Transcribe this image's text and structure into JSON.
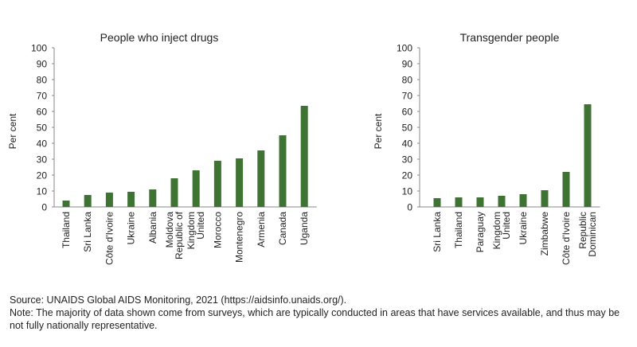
{
  "colors": {
    "bar": "#3f7334",
    "axis": "#888888",
    "text": "#222222"
  },
  "chart_data": [
    {
      "type": "bar",
      "title": "People who inject drugs",
      "xlabel": "",
      "ylabel": "Per cent",
      "ylim": [
        0,
        100
      ],
      "yticks": [
        0,
        10,
        20,
        30,
        40,
        50,
        60,
        70,
        80,
        90,
        100
      ],
      "grid": false,
      "categories": [
        "Thailand",
        "Sri Lanka",
        "Côte d'Ivoire",
        "Ukraine",
        "Albania",
        "Republic of Moldova",
        "United Kingdom",
        "Morocco",
        "Montenegro",
        "Armenia",
        "Canada",
        "Uganda"
      ],
      "category_lines": [
        [
          "Thailand"
        ],
        [
          "Sri Lanka"
        ],
        [
          "Côte d'Ivoire"
        ],
        [
          "Ukraine"
        ],
        [
          "Albania"
        ],
        [
          "Republic of",
          "Moldova"
        ],
        [
          "United",
          "Kingdom"
        ],
        [
          "Morocco"
        ],
        [
          "Montenegro"
        ],
        [
          "Armenia"
        ],
        [
          "Canada"
        ],
        [
          "Uganda"
        ]
      ],
      "values": [
        4,
        7.5,
        9,
        9.5,
        11,
        18,
        23,
        29,
        30.5,
        35.5,
        45,
        63.5
      ]
    },
    {
      "type": "bar",
      "title": "Transgender people",
      "xlabel": "",
      "ylabel": "Per cent",
      "ylim": [
        0,
        100
      ],
      "yticks": [
        0,
        10,
        20,
        30,
        40,
        50,
        60,
        70,
        80,
        90,
        100
      ],
      "grid": false,
      "categories": [
        "Sri Lanka",
        "Thailand",
        "Paraguay",
        "United Kingdom",
        "Ukraine",
        "Zimbabwe",
        "Côte d'Ivoire",
        "Dominican Republic"
      ],
      "category_lines": [
        [
          "Sri Lanka"
        ],
        [
          "Thailand"
        ],
        [
          "Paraguay"
        ],
        [
          "United",
          "Kingdom"
        ],
        [
          "Ukraine"
        ],
        [
          "Zimbabwe"
        ],
        [
          "Côte d'Ivoire"
        ],
        [
          "Dominican",
          "Republic"
        ]
      ],
      "values": [
        5.5,
        6,
        6,
        7,
        8,
        10.5,
        22,
        64.5
      ]
    }
  ],
  "notes": {
    "source": "Source: UNAIDS Global AIDS Monitoring, 2021 (https://aidsinfo.unaids.org/).",
    "note": "Note: The majority of data shown come from surveys, which are typically conducted in areas that have services available, and thus may be not fully nationally representative."
  }
}
